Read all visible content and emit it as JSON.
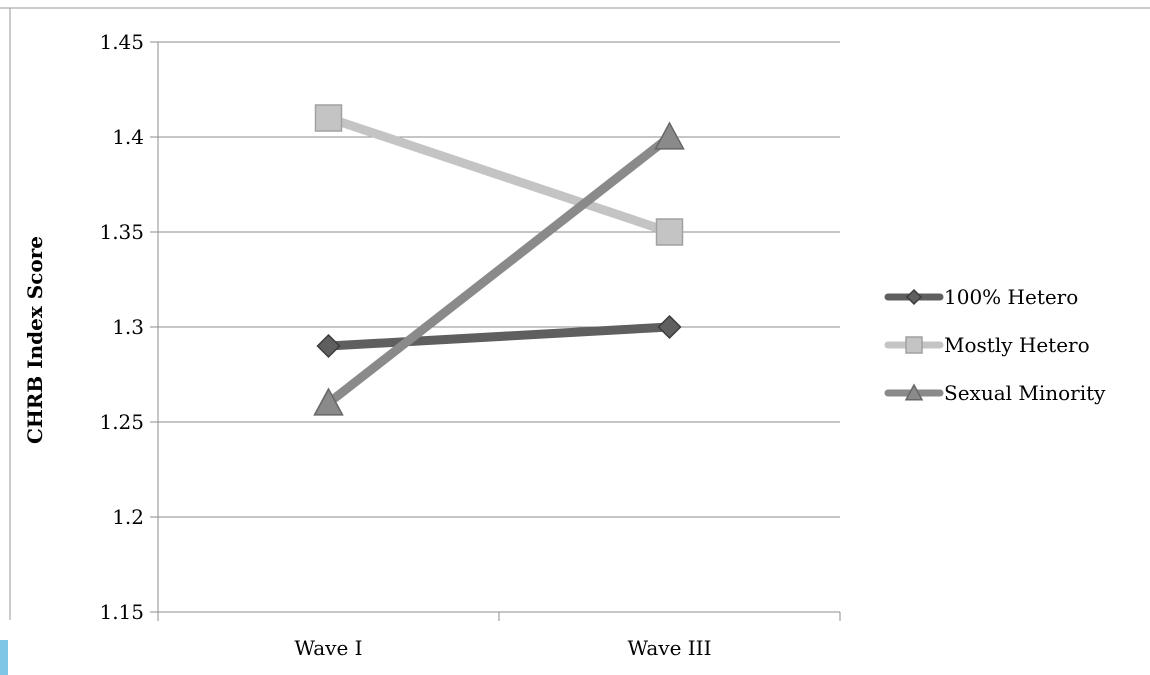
{
  "chart_data": {
    "type": "line",
    "title": "",
    "xlabel": "",
    "ylabel": "CHRB Index Score",
    "categories": [
      "Wave I",
      "Wave III"
    ],
    "ylim": [
      1.15,
      1.45
    ],
    "yticks": [
      "1.15",
      "1.2",
      "1.25",
      "1.3",
      "1.35",
      "1.4",
      "1.45"
    ],
    "grid": true,
    "legend_position": "right",
    "series": [
      {
        "name": "100% Hetero",
        "values": [
          1.29,
          1.3
        ],
        "color": "#5f5f5f",
        "marker": "diamond"
      },
      {
        "name": "Mostly Hetero",
        "values": [
          1.41,
          1.35
        ],
        "color": "#c4c4c4",
        "marker": "square"
      },
      {
        "name": "Sexual Minority",
        "values": [
          1.26,
          1.4
        ],
        "color": "#8a8a8a",
        "marker": "triangle"
      }
    ]
  }
}
